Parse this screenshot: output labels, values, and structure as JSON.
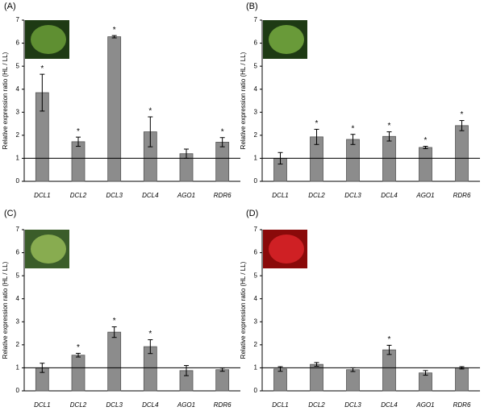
{
  "chart_data": [
    {
      "type": "bar",
      "panel_label": "(A)",
      "y_label": "Relative expression ratio (HL / LL)",
      "categories": [
        "DCL1",
        "DCL2",
        "DCL3",
        "DCL4",
        "AGO1",
        "RDR6"
      ],
      "values": [
        3.85,
        1.72,
        6.28,
        2.15,
        1.2,
        1.7
      ],
      "errors": [
        0.8,
        0.2,
        0.05,
        0.65,
        0.2,
        0.2
      ],
      "annotations": [
        "*",
        "*",
        "*",
        "*",
        null,
        "*"
      ],
      "reference_line": 1,
      "color": "#8c8c8c",
      "ylim": [
        0,
        7
      ],
      "yticks": [
        0,
        1,
        2,
        3,
        4,
        5,
        6,
        7
      ]
    },
    {
      "type": "bar",
      "panel_label": "(B)",
      "y_label": "Relative expression ratio (HL / LL)",
      "categories": [
        "DCL1",
        "DCL2",
        "DCL3",
        "DCL4",
        "AGO1",
        "RDR6"
      ],
      "values": [
        1.0,
        1.93,
        1.82,
        1.95,
        1.47,
        2.42
      ],
      "errors": [
        0.25,
        0.33,
        0.22,
        0.2,
        0.05,
        0.22
      ],
      "annotations": [
        null,
        "*",
        "*",
        "*",
        "*",
        "*"
      ],
      "reference_line": 1,
      "color": "#8c8c8c",
      "ylim": [
        0,
        7
      ],
      "yticks": [
        0,
        1,
        2,
        3,
        4,
        5,
        6,
        7
      ]
    },
    {
      "type": "bar",
      "panel_label": "(C)",
      "y_label": "Relative expression ratio (HL / LL)",
      "categories": [
        "DCL1",
        "DCL2",
        "DCL3",
        "DCL4",
        "AGO1",
        "RDR6"
      ],
      "values": [
        1.0,
        1.55,
        2.55,
        1.92,
        0.88,
        0.92
      ],
      "errors": [
        0.2,
        0.08,
        0.23,
        0.3,
        0.22,
        0.07
      ],
      "annotations": [
        null,
        "*",
        "*",
        "*",
        null,
        null
      ],
      "reference_line": 1,
      "color": "#8c8c8c",
      "ylim": [
        0,
        7
      ],
      "yticks": [
        0,
        1,
        2,
        3,
        4,
        5,
        6,
        7
      ]
    },
    {
      "type": "bar",
      "panel_label": "(D)",
      "y_label": "Relative expression ratio (HL / LL)",
      "categories": [
        "DCL1",
        "DCL2",
        "DCL3",
        "DCL4",
        "AGO1",
        "RDR6"
      ],
      "values": [
        0.95,
        1.15,
        0.92,
        1.78,
        0.78,
        1.0
      ],
      "errors": [
        0.1,
        0.08,
        0.08,
        0.2,
        0.1,
        0.05
      ],
      "annotations": [
        null,
        null,
        null,
        "*",
        null,
        null
      ],
      "reference_line": 1,
      "color": "#8c8c8c",
      "ylim": [
        0,
        7
      ],
      "yticks": [
        0,
        1,
        2,
        3,
        4,
        5,
        6,
        7
      ]
    }
  ]
}
